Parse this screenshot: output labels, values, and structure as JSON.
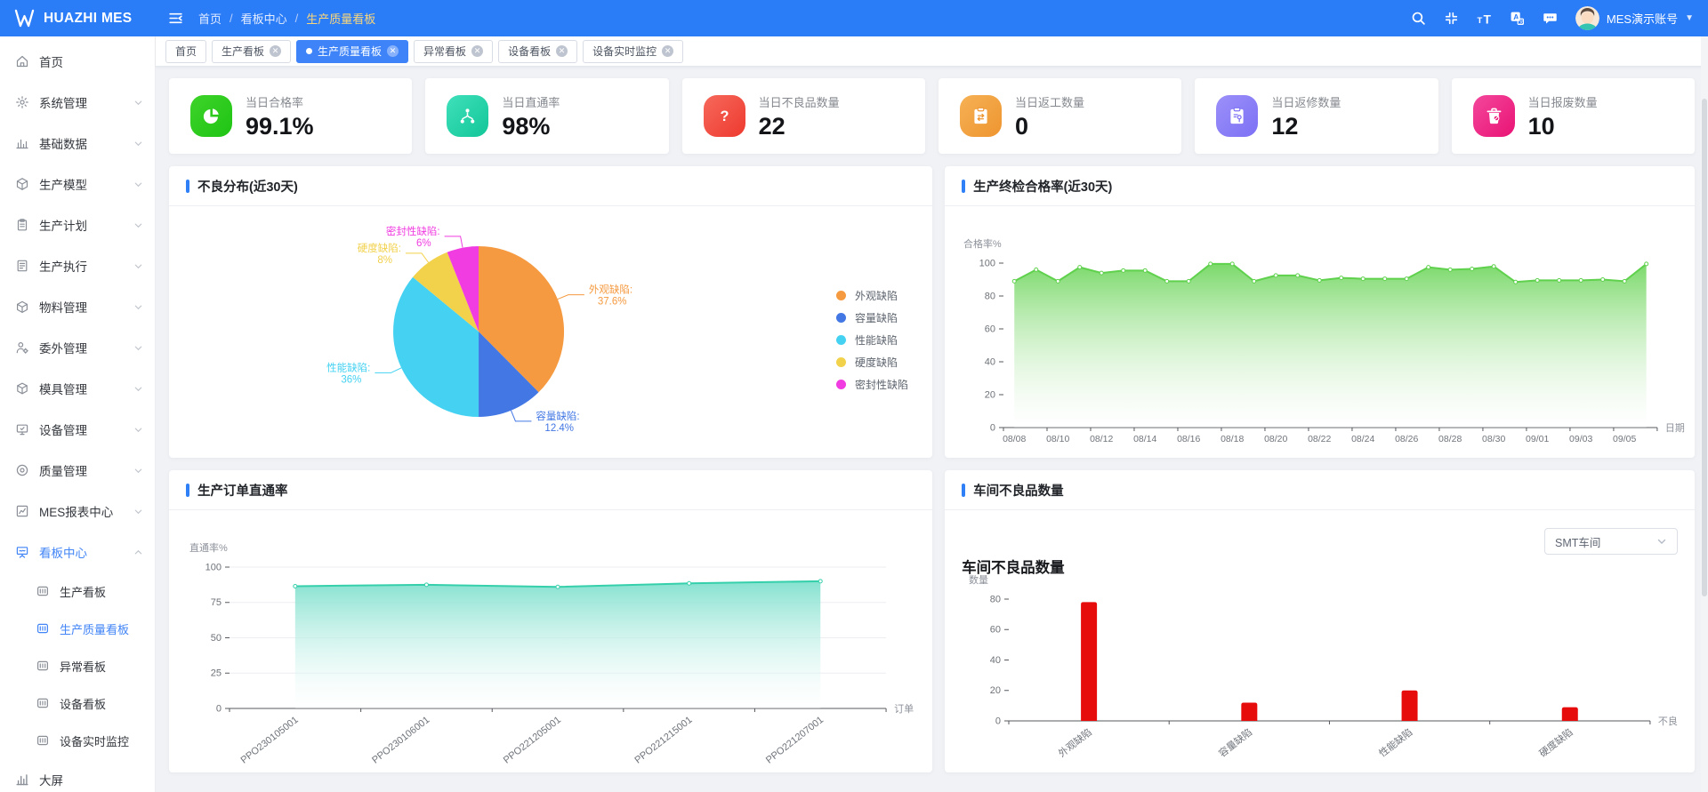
{
  "header": {
    "logo_text": "HUAZHI MES",
    "breadcrumb": [
      "首页",
      "看板中心",
      "生产质量看板"
    ],
    "breadcrumb_separator": "/",
    "icons": [
      "search-icon",
      "exit-fullscreen-icon",
      "font-size-icon",
      "translate-icon",
      "message-icon"
    ],
    "username": "MES演示账号"
  },
  "tabs": [
    {
      "key": "home",
      "label": "首页",
      "closable": false,
      "active": false
    },
    {
      "key": "production-board",
      "label": "生产看板",
      "closable": true,
      "active": false
    },
    {
      "key": "production-quality-board",
      "label": "生产质量看板",
      "closable": true,
      "active": true
    },
    {
      "key": "exception-board",
      "label": "异常看板",
      "closable": true,
      "active": false
    },
    {
      "key": "equipment-board",
      "label": "设备看板",
      "closable": true,
      "active": false
    },
    {
      "key": "equipment-realtime-monitor",
      "label": "设备实时监控",
      "closable": true,
      "active": false
    }
  ],
  "sidebar": {
    "items": [
      {
        "key": "home",
        "label": "首页",
        "icon": "home-icon",
        "type": "parent",
        "expandable": false
      },
      {
        "key": "system-management",
        "label": "系统管理",
        "icon": "system-icon",
        "type": "parent",
        "expandable": true
      },
      {
        "key": "base-data",
        "label": "基础数据",
        "icon": "base-data-icon",
        "type": "parent",
        "expandable": true
      },
      {
        "key": "production-model",
        "label": "生产模型",
        "icon": "production-model-icon",
        "type": "parent",
        "expandable": true
      },
      {
        "key": "production-plan",
        "label": "生产计划",
        "icon": "production-plan-icon",
        "type": "parent",
        "expandable": true
      },
      {
        "key": "production-execution",
        "label": "生产执行",
        "icon": "production-execution-icon",
        "type": "parent",
        "expandable": true
      },
      {
        "key": "material-management",
        "label": "物料管理",
        "icon": "material-icon",
        "type": "parent",
        "expandable": true
      },
      {
        "key": "outsourcing-management",
        "label": "委外管理",
        "icon": "outsourcing-icon",
        "type": "parent",
        "expandable": true
      },
      {
        "key": "mold-management",
        "label": "模具管理",
        "icon": "mold-icon",
        "type": "parent",
        "expandable": true
      },
      {
        "key": "equipment-management",
        "label": "设备管理",
        "icon": "equipment-icon",
        "type": "parent",
        "expandable": true
      },
      {
        "key": "quality-management",
        "label": "质量管理",
        "icon": "quality-icon",
        "type": "parent",
        "expandable": true
      },
      {
        "key": "mes-report-center",
        "label": "MES报表中心",
        "icon": "report-icon",
        "type": "parent",
        "expandable": true
      },
      {
        "key": "board-center",
        "label": "看板中心",
        "icon": "board-center-icon",
        "type": "parent",
        "expandable": true,
        "expanded": true,
        "active": true
      },
      {
        "key": "production-board",
        "label": "生产看板",
        "icon": "kanban-icon",
        "type": "sub"
      },
      {
        "key": "production-quality-board",
        "label": "生产质量看板",
        "icon": "kanban-icon",
        "type": "sub",
        "active": true
      },
      {
        "key": "exception-board",
        "label": "异常看板",
        "icon": "kanban-icon",
        "type": "sub"
      },
      {
        "key": "equipment-board",
        "label": "设备看板",
        "icon": "kanban-icon",
        "type": "sub"
      },
      {
        "key": "equipment-realtime-monitor",
        "label": "设备实时监控",
        "icon": "kanban-icon",
        "type": "sub"
      },
      {
        "key": "big-screen",
        "label": "大屏",
        "icon": "big-screen-icon",
        "type": "parent",
        "expandable": false
      }
    ]
  },
  "kpis": [
    {
      "key": "pass-rate",
      "label": "当日合格率",
      "value": "99.1%",
      "icon": "pie-chart-icon",
      "color_from": "#3ed32a",
      "color_to": "#1fc414"
    },
    {
      "key": "first-pass-yield",
      "label": "当日直通率",
      "value": "98%",
      "icon": "share-icon",
      "color_from": "#3fe0bb",
      "color_to": "#12c698"
    },
    {
      "key": "defect-count",
      "label": "当日不良品数量",
      "value": "22",
      "icon": "question-icon",
      "color_from": "#f6695b",
      "color_to": "#ee392f"
    },
    {
      "key": "rework-count",
      "label": "当日返工数量",
      "value": "0",
      "icon": "rework-clipboard-icon",
      "color_from": "#f6b155",
      "color_to": "#ee9530"
    },
    {
      "key": "repair-count",
      "label": "当日返修数量",
      "value": "12",
      "icon": "repair-clipboard-icon",
      "color_from": "#9b90f9",
      "color_to": "#7d70f5"
    },
    {
      "key": "scrap-count",
      "label": "当日报废数量",
      "value": "10",
      "icon": "scrap-trash-icon",
      "color_from": "#f4479c",
      "color_to": "#e91374"
    }
  ],
  "panels": {
    "defect_distribution": {
      "title": "不良分布(近30天)"
    },
    "final_inspection": {
      "title": "生产终检合格率(近30天)"
    },
    "order_fpy": {
      "title": "生产订单直通率"
    },
    "workshop_defects": {
      "title": "车间不良品数量",
      "inner_title": "车间不良品数量",
      "dropdown_value": "SMT车间"
    }
  },
  "chart_data": [
    {
      "id": "defect_pie",
      "type": "pie",
      "title": "不良分布(近30天)",
      "legend_position": "right",
      "slices": [
        {
          "name": "外观缺陷",
          "pct": 37.6,
          "color": "#f59a40"
        },
        {
          "name": "容量缺陷",
          "pct": 12.4,
          "color": "#4277e4"
        },
        {
          "name": "性能缺陷",
          "pct": 36,
          "color": "#45d2f2"
        },
        {
          "name": "硬度缺陷",
          "pct": 8,
          "color": "#f2d14b"
        },
        {
          "name": "密封性缺陷",
          "pct": 6,
          "color": "#f03ce0"
        }
      ]
    },
    {
      "id": "final_inspection_pass_rate",
      "type": "area",
      "title": "生产终检合格率(近30天)",
      "xlabel": "日期",
      "ylabel": "合格率%",
      "ylim": [
        0,
        100
      ],
      "yticks": [
        0,
        20,
        40,
        60,
        80,
        100
      ],
      "xtick_every": 2,
      "grid": false,
      "rotate_xlabels": false,
      "x": [
        "08/08",
        "08/09",
        "08/10",
        "08/11",
        "08/12",
        "08/13",
        "08/14",
        "08/15",
        "08/16",
        "08/17",
        "08/18",
        "08/19",
        "08/20",
        "08/21",
        "08/22",
        "08/23",
        "08/24",
        "08/25",
        "08/26",
        "08/27",
        "08/28",
        "08/29",
        "08/30",
        "08/31",
        "09/01",
        "09/02",
        "09/03",
        "09/04",
        "09/05",
        "09/06"
      ],
      "values": [
        89,
        96,
        89,
        97.5,
        94,
        95.5,
        95.5,
        89,
        89,
        99.5,
        99.5,
        89,
        92.5,
        92.5,
        89.5,
        91,
        90.5,
        90.5,
        90.5,
        97.5,
        96,
        96.5,
        98,
        88.5,
        89.5,
        89.5,
        89.5,
        90,
        89,
        99.5
      ],
      "line_color": "#5fd14d",
      "fill_from": "#74d763",
      "fill_to": "#ffffff"
    },
    {
      "id": "order_first_pass_yield",
      "type": "area",
      "title": "生产订单直通率",
      "xlabel": "订单",
      "ylabel": "直通率%",
      "ylim": [
        0,
        100
      ],
      "yticks": [
        0,
        25,
        50,
        75,
        100
      ],
      "xtick_every": 1,
      "grid": true,
      "rotate_xlabels": true,
      "x": [
        "PPO230105001",
        "PPO230106001",
        "PPO221205001",
        "PPO221215001",
        "PPO221207001"
      ],
      "values": [
        86.5,
        87.5,
        86,
        88.5,
        90
      ],
      "line_color": "#35d0ab",
      "fill_from": "#7fe0cd",
      "fill_to": "#ffffff"
    },
    {
      "id": "workshop_defect_count",
      "type": "bar",
      "title": "车间不良品数量",
      "xlabel": "不良",
      "ylabel": "数量",
      "ylim": [
        0,
        80
      ],
      "yticks": [
        0,
        20,
        40,
        60,
        80
      ],
      "xtick_every": 1,
      "grid": false,
      "rotate_xlabels": true,
      "categories": [
        "外观缺陷",
        "容量缺陷",
        "性能缺陷",
        "硬度缺陷"
      ],
      "values": [
        78,
        12,
        20,
        9
      ],
      "bar_color": "#e60c0c"
    }
  ]
}
